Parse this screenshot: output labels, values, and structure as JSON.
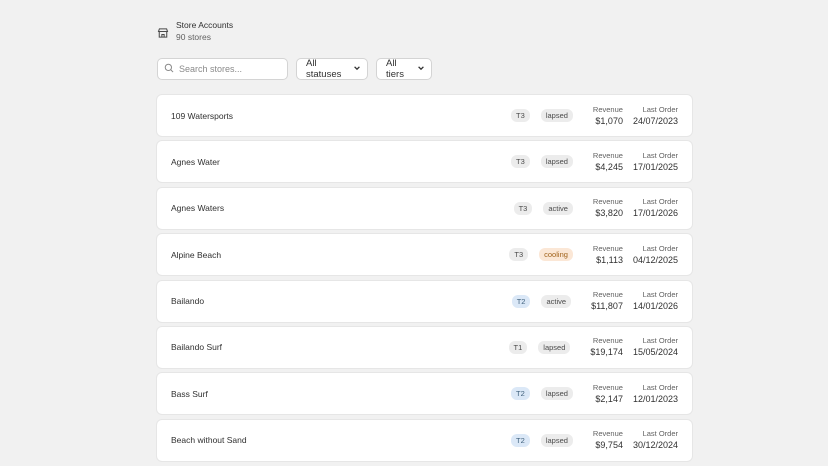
{
  "header": {
    "title": "Store Accounts",
    "subtitle": "90 stores"
  },
  "search": {
    "placeholder": "Search stores..."
  },
  "filters": {
    "status": "All statuses",
    "tier": "All tiers"
  },
  "labels": {
    "revenue": "Revenue",
    "last_order": "Last Order"
  },
  "stores": [
    {
      "name": "109 Watersports",
      "tier": "T3",
      "status": "lapsed",
      "revenue": "$1,070",
      "last_order": "24/07/2023"
    },
    {
      "name": "Agnes Water",
      "tier": "T3",
      "status": "lapsed",
      "revenue": "$4,245",
      "last_order": "17/01/2025"
    },
    {
      "name": "Agnes Waters",
      "tier": "T3",
      "status": "active",
      "revenue": "$3,820",
      "last_order": "17/01/2026"
    },
    {
      "name": "Alpine Beach",
      "tier": "T3",
      "status": "cooling",
      "revenue": "$1,113",
      "last_order": "04/12/2025"
    },
    {
      "name": "Bailando",
      "tier": "T2",
      "status": "active",
      "revenue": "$11,807",
      "last_order": "14/01/2026"
    },
    {
      "name": "Bailando Surf",
      "tier": "T1",
      "status": "lapsed",
      "revenue": "$19,174",
      "last_order": "15/05/2024"
    },
    {
      "name": "Bass Surf",
      "tier": "T2",
      "status": "lapsed",
      "revenue": "$2,147",
      "last_order": "12/01/2023"
    },
    {
      "name": "Beach without Sand",
      "tier": "T2",
      "status": "lapsed",
      "revenue": "$9,754",
      "last_order": "30/12/2024"
    }
  ],
  "colors": {
    "background": "#f1f1f1",
    "tier_t2_bg": "#dbe8f7",
    "status_cooling_bg": "#fbe7d6",
    "status_cooling_text": "#a0621a"
  },
  "icons": {
    "store": "store-icon",
    "search": "search-icon",
    "dropdown": "chevron-down-icon"
  }
}
